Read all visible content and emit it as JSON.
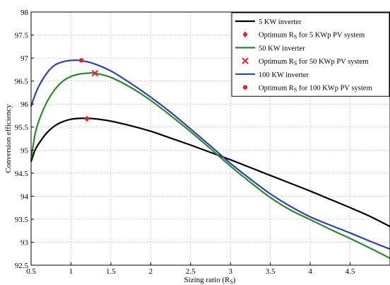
{
  "chart_data": {
    "type": "line",
    "title": "",
    "xlabel": "Sizing ratio (R",
    "xlabel_sub": "S",
    "xlabel_close": ")",
    "ylabel": "Conversion efficiency",
    "xlim": [
      0.5,
      5.0
    ],
    "ylim": [
      92.5,
      98.0
    ],
    "xticks": [
      "0.5",
      "1",
      "1.5",
      "2",
      "2.5",
      "3",
      "3.5",
      "4",
      "4.5"
    ],
    "yticks": [
      "92.5",
      "93",
      "93.5",
      "94",
      "94.5",
      "95",
      "95.5",
      "96",
      "96.5",
      "97",
      "97.5",
      "98"
    ],
    "grid": true,
    "legend_position": "top-right",
    "series": [
      {
        "name": "5 KW inverter",
        "color": "#000000",
        "x": [
          0.5,
          0.55,
          0.6,
          0.7,
          0.8,
          0.9,
          1.0,
          1.1,
          1.2,
          1.3,
          1.5,
          1.75,
          2.0,
          2.25,
          2.5,
          2.75,
          3.0,
          3.25,
          3.5,
          3.75,
          4.0,
          4.25,
          4.5,
          4.75,
          5.0
        ],
        "y": [
          94.75,
          95.0,
          95.15,
          95.38,
          95.53,
          95.62,
          95.67,
          95.69,
          95.69,
          95.68,
          95.63,
          95.53,
          95.41,
          95.26,
          95.11,
          94.95,
          94.79,
          94.62,
          94.45,
          94.28,
          94.11,
          93.93,
          93.75,
          93.56,
          93.34
        ]
      },
      {
        "name": "50 KW inverter",
        "color": "#2a8a2a",
        "x": [
          0.5,
          0.55,
          0.6,
          0.7,
          0.8,
          0.9,
          1.0,
          1.1,
          1.2,
          1.3,
          1.5,
          1.75,
          2.0,
          2.25,
          2.5,
          2.75,
          3.0,
          3.25,
          3.5,
          3.75,
          4.0,
          4.25,
          4.5,
          4.75,
          5.0
        ],
        "y": [
          94.8,
          95.35,
          95.65,
          96.05,
          96.32,
          96.5,
          96.6,
          96.65,
          96.67,
          96.67,
          96.58,
          96.36,
          96.08,
          95.75,
          95.4,
          95.03,
          94.65,
          94.3,
          93.97,
          93.7,
          93.49,
          93.28,
          93.08,
          92.87,
          92.65
        ]
      },
      {
        "name": "100 KW inverter",
        "color": "#2f3fb8",
        "x": [
          0.5,
          0.55,
          0.6,
          0.7,
          0.8,
          0.9,
          1.0,
          1.1,
          1.2,
          1.3,
          1.5,
          1.75,
          2.0,
          2.25,
          2.5,
          2.75,
          3.0,
          3.25,
          3.5,
          3.75,
          4.0,
          4.25,
          4.5,
          4.75,
          5.0
        ],
        "y": [
          95.95,
          96.2,
          96.4,
          96.68,
          96.85,
          96.92,
          96.95,
          96.95,
          96.92,
          96.87,
          96.72,
          96.45,
          96.15,
          95.82,
          95.46,
          95.09,
          94.71,
          94.37,
          94.05,
          93.78,
          93.55,
          93.37,
          93.2,
          93.02,
          92.85
        ]
      }
    ],
    "markers": [
      {
        "name_prefix": "Optimum R",
        "name_sub": "S",
        "name_suffix": " for 5 KWp PV system",
        "shape": "diamond",
        "color": "#e8202a",
        "x": 1.2,
        "y": 95.68
      },
      {
        "name_prefix": "Optimum R",
        "name_sub": "S",
        "name_suffix": " for 50 KWp PV system",
        "shape": "x",
        "color": "#e8202a",
        "x": 1.3,
        "y": 96.67
      },
      {
        "name_prefix": "Optimum R",
        "name_sub": "S",
        "name_suffix": " for 100 KWp PV system",
        "shape": "dot",
        "color": "#e8202a",
        "x": 1.13,
        "y": 96.95
      }
    ],
    "legend_order": [
      "s0",
      "m0",
      "s1",
      "m1",
      "s2",
      "m2"
    ]
  }
}
